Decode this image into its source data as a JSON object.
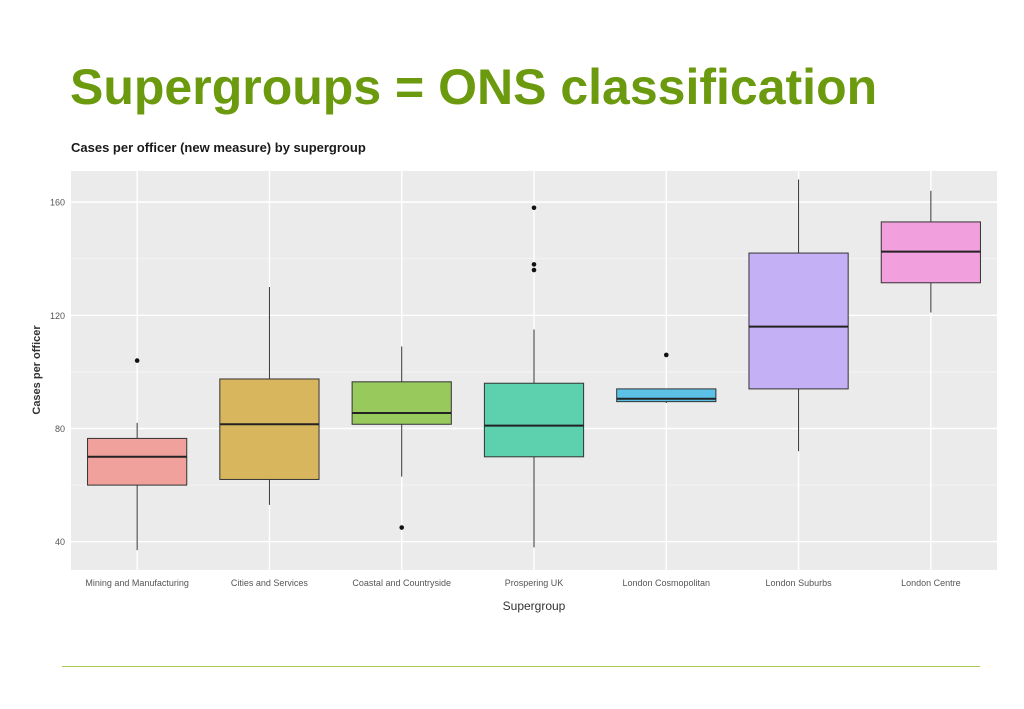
{
  "slide": {
    "title": "Supergroups = ONS classification",
    "title_color": "#6b9a0f",
    "rule_color": "#a9c94d"
  },
  "chart_data": {
    "type": "boxplot",
    "title": "Cases per officer (new measure) by supergroup",
    "xlabel": "Supergroup",
    "ylabel": "Cases per officer",
    "ylim": [
      30,
      171
    ],
    "yticks": [
      40,
      80,
      120,
      160
    ],
    "grid": true,
    "legend": "none",
    "panel_color": "#ebebeb",
    "categories": [
      "Mining and Manufacturing",
      "Cities and Services",
      "Coastal and Countryside",
      "Prospering UK",
      "London Cosmopolitan",
      "London Suburbs",
      "London Centre"
    ],
    "boxes": [
      {
        "category": "Mining and Manufacturing",
        "whisker_low": 37,
        "q1": 60,
        "median": 70,
        "q3": 76.5,
        "whisker_high": 82,
        "outliers": [
          104
        ],
        "color": "#f0a19c"
      },
      {
        "category": "Cities and Services",
        "whisker_low": 53,
        "q1": 62,
        "median": 81.5,
        "q3": 97.5,
        "whisker_high": 130,
        "outliers": [],
        "color": "#d8b65e"
      },
      {
        "category": "Coastal and Countryside",
        "whisker_low": 63,
        "q1": 81.5,
        "median": 85.5,
        "q3": 96.5,
        "whisker_high": 109,
        "outliers": [
          45
        ],
        "color": "#97c95d"
      },
      {
        "category": "Prospering UK",
        "whisker_low": 38,
        "q1": 70,
        "median": 81,
        "q3": 96,
        "whisker_high": 115,
        "outliers": [
          158,
          138,
          136
        ],
        "color": "#5dd0ae"
      },
      {
        "category": "London Cosmopolitan",
        "whisker_low": 89,
        "q1": 89.5,
        "median": 90.5,
        "q3": 94,
        "whisker_high": 94,
        "outliers": [
          106
        ],
        "color": "#5bc2e6"
      },
      {
        "category": "London Suburbs",
        "whisker_low": 72,
        "q1": 94,
        "median": 116,
        "q3": 142,
        "whisker_high": 168,
        "outliers": [],
        "color": "#c4b0f4"
      },
      {
        "category": "London Centre",
        "whisker_low": 121,
        "q1": 131.5,
        "median": 142.5,
        "q3": 153,
        "whisker_high": 164,
        "outliers": [],
        "color": "#f29fdd"
      }
    ]
  }
}
